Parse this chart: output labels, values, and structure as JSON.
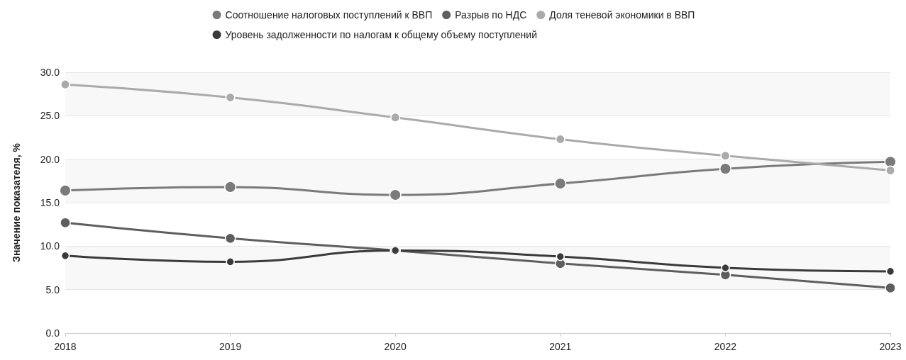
{
  "chart_data": {
    "type": "line",
    "ylabel": "Значение показателя, %",
    "categories": [
      "2018",
      "2019",
      "2020",
      "2021",
      "2022",
      "2023"
    ],
    "series": [
      {
        "name": "Соотношение налоговых поступлений к ВВП",
        "color": "#7a7a7a",
        "values": [
          16.4,
          16.8,
          15.9,
          17.2,
          18.9,
          19.7
        ]
      },
      {
        "name": "Разрыв по НДС",
        "color": "#5e5e5e",
        "values": [
          12.7,
          10.9,
          9.5,
          8.0,
          6.7,
          5.2
        ]
      },
      {
        "name": "Доля теневой экономики в ВВП",
        "color": "#aaaaaa",
        "values": [
          28.6,
          27.1,
          24.8,
          22.3,
          20.4,
          18.7
        ]
      },
      {
        "name": "Уровень задолженности по налогам к общему объему поступлений",
        "color": "#3a3a3a",
        "values": [
          8.9,
          8.2,
          9.5,
          8.8,
          7.5,
          7.1
        ]
      }
    ],
    "ylim": [
      0,
      30
    ],
    "yticks": [
      {
        "value": 0,
        "label": "0.0"
      },
      {
        "value": 5,
        "label": "5.0"
      },
      {
        "value": 10,
        "label": "10.0"
      },
      {
        "value": 15,
        "label": "15.0"
      },
      {
        "value": 20,
        "label": "20.0"
      },
      {
        "value": 25,
        "label": "25.0"
      },
      {
        "value": 30,
        "label": "30.0"
      }
    ],
    "grid": "y",
    "legend": "top",
    "marker": "circle",
    "line_style": "solid"
  }
}
